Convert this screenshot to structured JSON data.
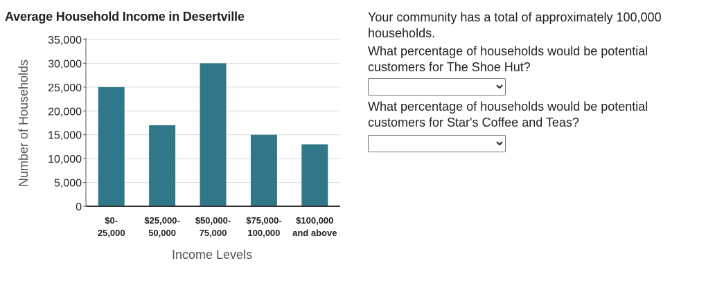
{
  "chart_data": {
    "type": "bar",
    "title": "Average Household Income in Desertville",
    "xlabel": "Income Levels",
    "ylabel": "Number of Households",
    "categories": [
      [
        "$0-",
        "25,000"
      ],
      [
        "$25,000-",
        "50,000"
      ],
      [
        "$50,000-",
        "75,000"
      ],
      [
        "$75,000-",
        "100,000"
      ],
      [
        "$100,000",
        "and above"
      ]
    ],
    "values": [
      25000,
      17000,
      30000,
      15000,
      13000
    ],
    "ylim": [
      0,
      35000
    ],
    "yticks": [
      "0",
      "5,000",
      "10,000",
      "15,000",
      "20,000",
      "25,000",
      "30,000",
      "35,000"
    ],
    "bar_color": "#2f7789",
    "grid": true
  },
  "questions": {
    "intro": "Your community has a total of approximately 100,000 households.",
    "q1": "What percentage of households would be potential customers for The Shoe Hut?",
    "q1_selected": "",
    "q2": "What percentage of households would be potential customers for Star's Coffee and Teas?",
    "q2_selected": ""
  }
}
